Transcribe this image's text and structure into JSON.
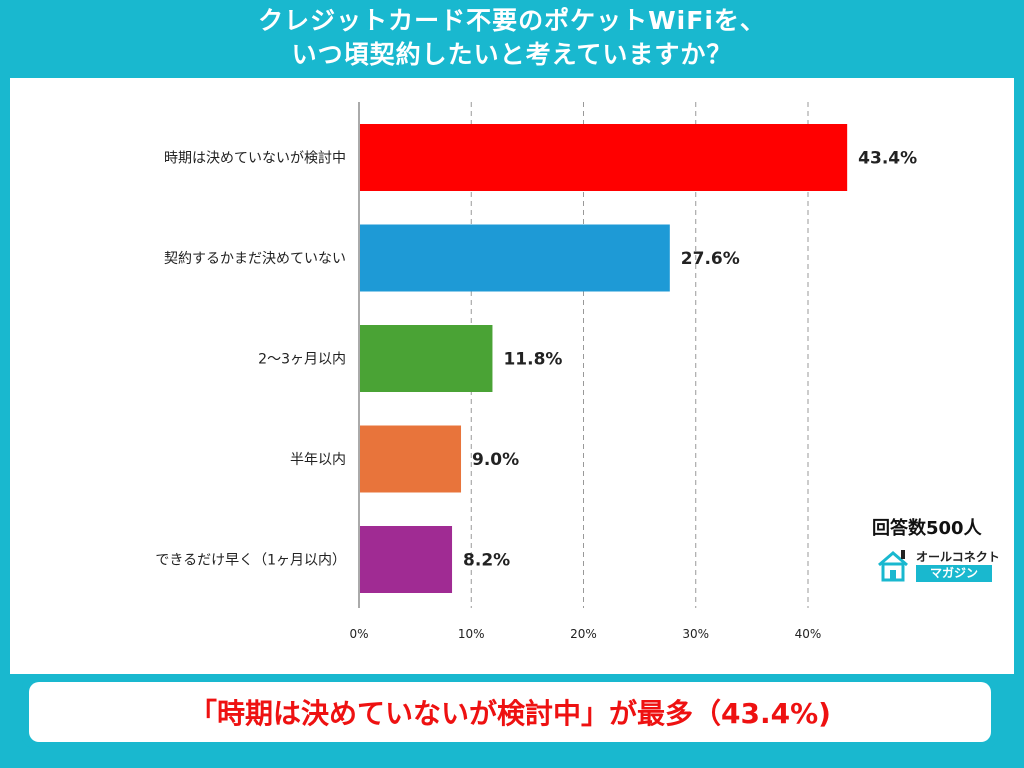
{
  "header": {
    "title_line1": "クレジットカード不要のポケットWiFiを、",
    "title_line2": "いつ頃契約したいと考えていますか？"
  },
  "respondents": "回答数500人",
  "logo": {
    "line1": "オールコネクト",
    "line2": "マガジン",
    "icon": "house-icon"
  },
  "conclusion": "「時期は決めていないが検討中」が最多（43.4%)",
  "colors": {
    "background": "#19b8cf",
    "accent_text": "#ee1111"
  },
  "chart_data": {
    "type": "bar",
    "orientation": "horizontal",
    "categories": [
      "時期は決めていないが検討中",
      "契約するかまだ決めていない",
      "2〜3ヶ月以内",
      "半年以内",
      "できるだけ早く（1ヶ月以内）"
    ],
    "values": [
      43.4,
      27.6,
      11.8,
      9.0,
      8.2
    ],
    "value_labels": [
      "43.4%",
      "27.6%",
      "11.8%",
      "9.0%",
      "8.2%"
    ],
    "bar_colors": [
      "#ff0000",
      "#1e9ad6",
      "#4aa335",
      "#e8743b",
      "#a02b93"
    ],
    "x_ticks": [
      "0%",
      "10%",
      "20%",
      "30%",
      "40%"
    ],
    "x_tick_values": [
      0,
      10,
      20,
      30,
      40
    ],
    "xlim": [
      0,
      45
    ],
    "grid": true
  }
}
